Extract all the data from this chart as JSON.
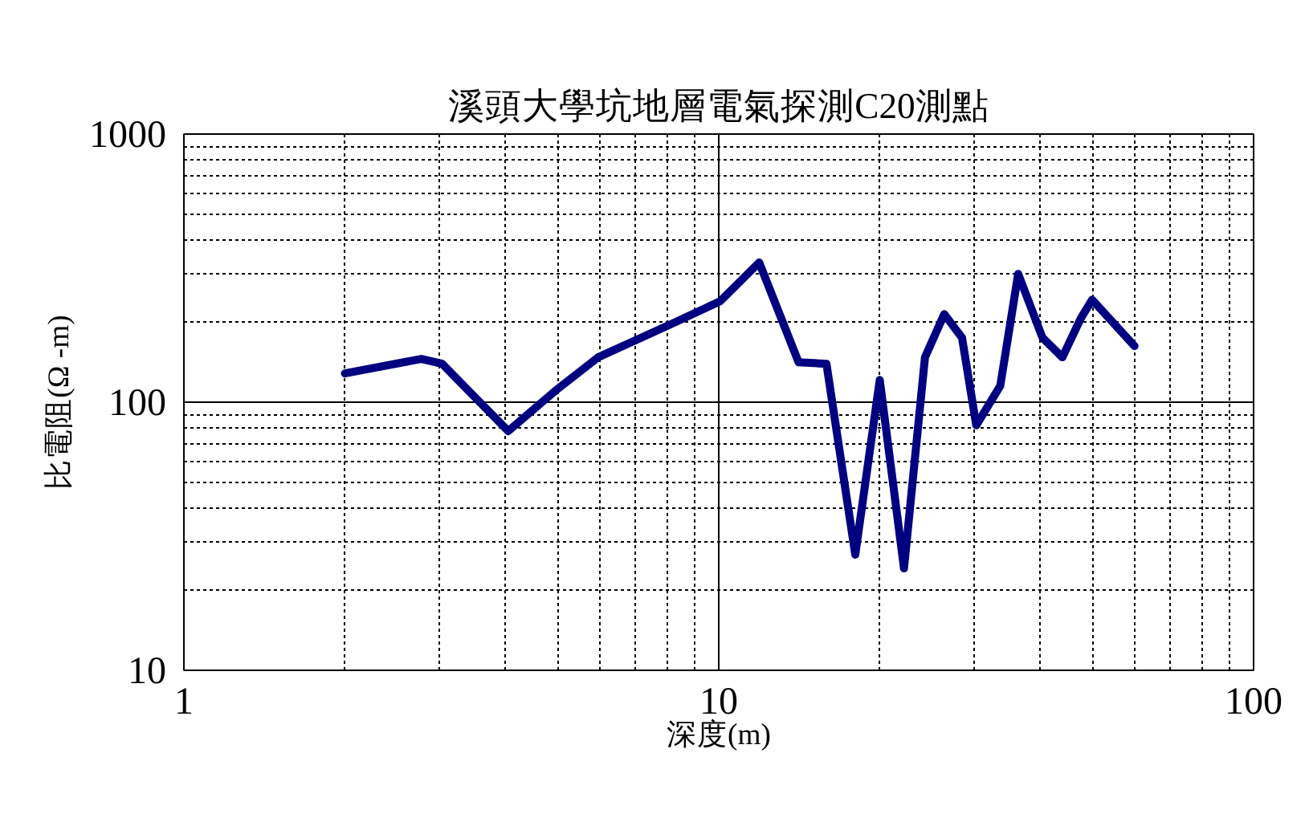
{
  "chart_data": {
    "type": "line",
    "title": "溪頭大學坑地層電氣探測C20測點",
    "xlabel": "深度(m)",
    "ylabel": "比電阻(Ω -m)",
    "log": "xy",
    "xlim": [
      1,
      100
    ],
    "xticks": [
      1,
      10,
      100
    ],
    "ylim": [
      10,
      1000
    ],
    "yticks": [
      10,
      100,
      1000
    ],
    "grid": true,
    "marker": "none",
    "line_style": "solid",
    "series": [
      {
        "color": "#000080",
        "x": [
          2.0,
          2.78,
          3.04,
          4.04,
          4.94,
          5.95,
          8.3,
          10.06,
          11.9,
          14.1,
          15.9,
          18.0,
          20.0,
          22.2,
          24.3,
          26.4,
          28.5,
          30.3,
          33.6,
          36.3,
          40.3,
          43.9,
          47.5,
          49.9,
          59.9
        ],
        "values": [
          128,
          145,
          139,
          78,
          110,
          147,
          199,
          238,
          332,
          141,
          139,
          27,
          121,
          24,
          147,
          213,
          174,
          82,
          115,
          301,
          174,
          147,
          205,
          241,
          162
        ]
      }
    ]
  }
}
